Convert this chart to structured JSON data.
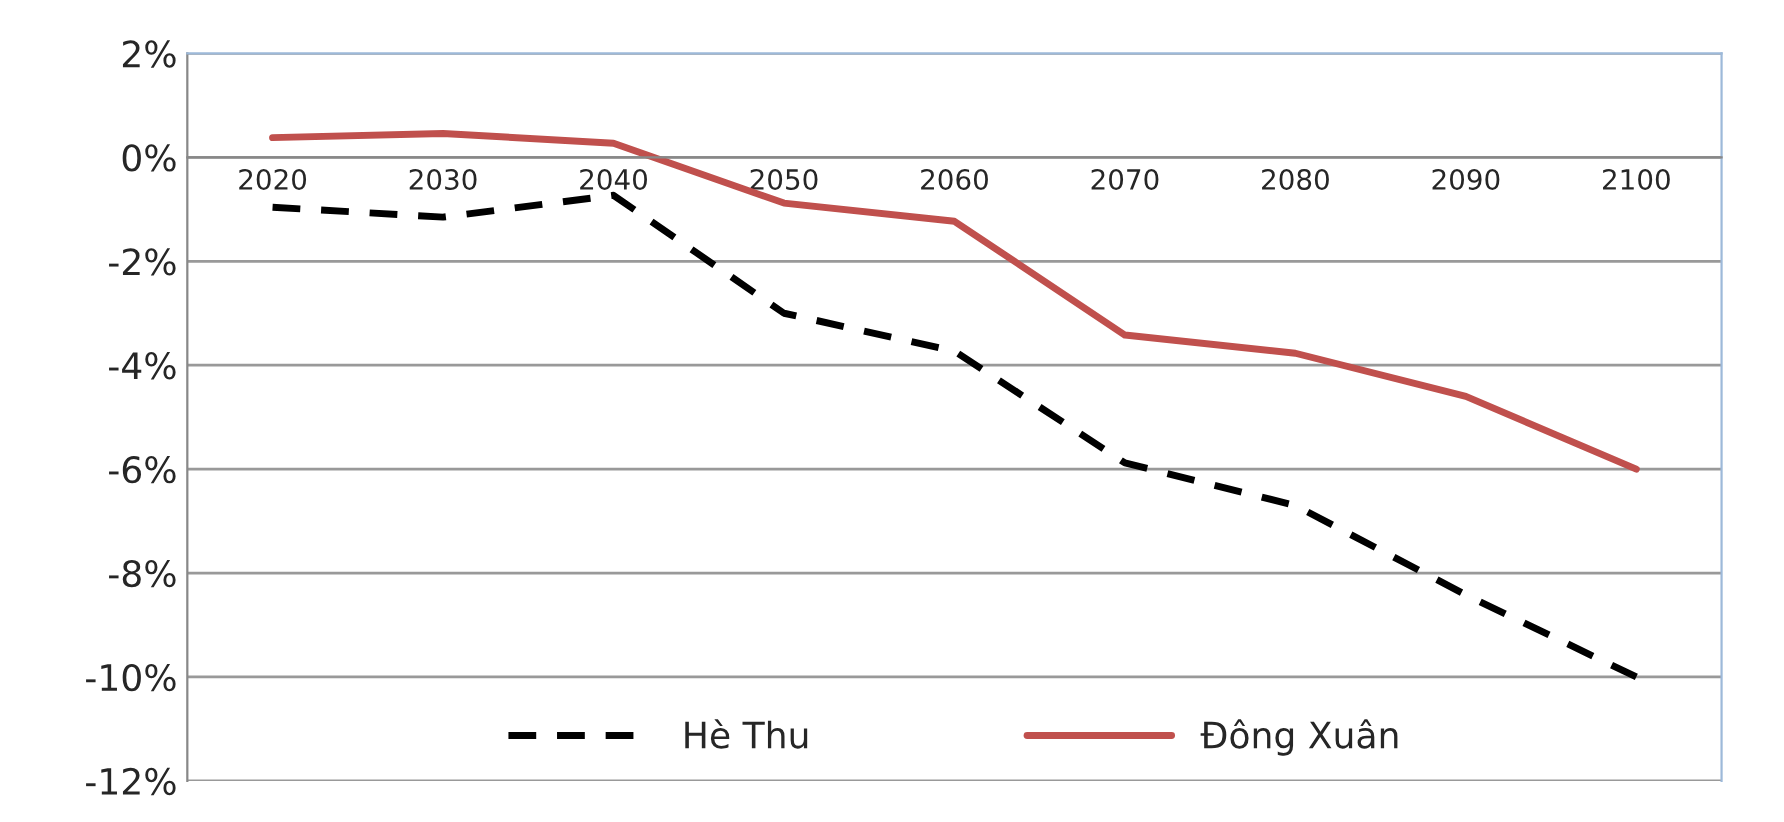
{
  "chart_data": {
    "type": "line",
    "categories": [
      "2020",
      "2030",
      "2040",
      "2050",
      "2060",
      "2070",
      "2080",
      "2090",
      "2100"
    ],
    "series": [
      {
        "name": "Hè Thu",
        "color": "#000000",
        "line_style": "dashed",
        "values": [
          -0.96,
          -1.15,
          -0.73,
          -3.0,
          -3.73,
          -5.88,
          -6.7,
          -8.42,
          -10.0
        ]
      },
      {
        "name": "Đông Xuân",
        "color": "#c0504d",
        "line_style": "solid",
        "values": [
          0.38,
          0.46,
          0.27,
          -0.88,
          -1.23,
          -3.42,
          -3.77,
          -4.6,
          -6.0
        ]
      }
    ],
    "ylim": [
      -12,
      2
    ],
    "yticks": [
      {
        "value": 2,
        "label": "2%"
      },
      {
        "value": 0,
        "label": "0%"
      },
      {
        "value": -2,
        "label": "-2%"
      },
      {
        "value": -4,
        "label": "-4%"
      },
      {
        "value": -6,
        "label": "-6%"
      },
      {
        "value": -8,
        "label": "-8%"
      },
      {
        "value": -10,
        "label": "-10%"
      },
      {
        "value": -12,
        "label": "-12%"
      }
    ],
    "grid": "y",
    "legend": "bottom",
    "marker": "none"
  }
}
